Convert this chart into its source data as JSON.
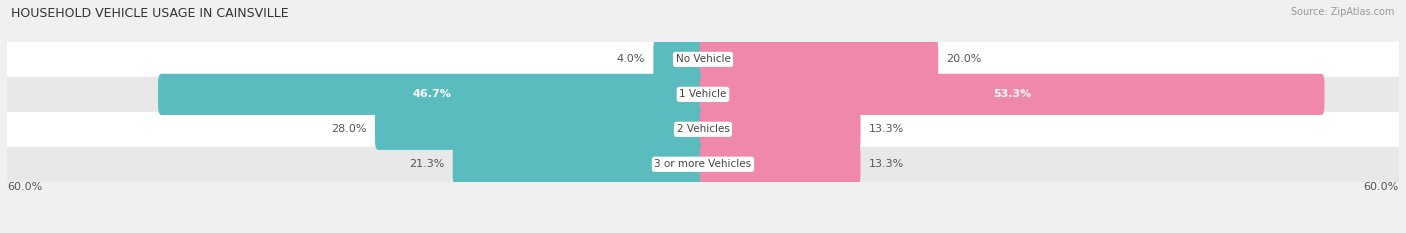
{
  "title": "HOUSEHOLD VEHICLE USAGE IN CAINSVILLE",
  "source": "Source: ZipAtlas.com",
  "categories": [
    "No Vehicle",
    "1 Vehicle",
    "2 Vehicles",
    "3 or more Vehicles"
  ],
  "owner_values": [
    4.0,
    46.7,
    28.0,
    21.3
  ],
  "renter_values": [
    20.0,
    53.3,
    13.3,
    13.3
  ],
  "owner_color": "#5bbcbf",
  "renter_color": "#f088aa",
  "xlim": 60.0,
  "axis_label_left": "60.0%",
  "axis_label_right": "60.0%",
  "bg_color": "#f0f0f0",
  "row_colors": [
    "#ffffff",
    "#e8e8e8",
    "#ffffff",
    "#e8e8e8"
  ],
  "title_fontsize": 9,
  "source_fontsize": 7,
  "label_fontsize": 8,
  "category_fontsize": 7.5,
  "legend_fontsize": 8
}
